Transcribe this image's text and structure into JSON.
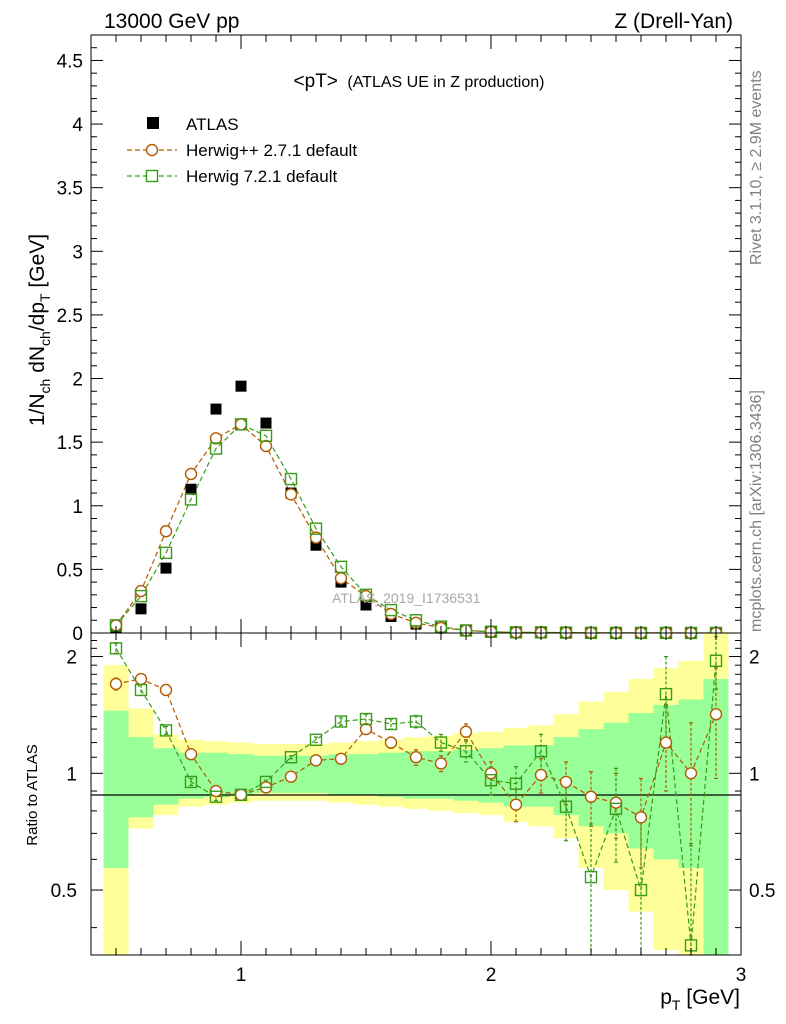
{
  "header": {
    "left_title": "13000 GeV pp",
    "right_title": "Z (Drell-Yan)"
  },
  "side_labels": {
    "rivet": "Rivet 3.1.10, ≥ 2.9M events",
    "mcplots": "mcplots.cern.ch [arXiv:1306.3436]"
  },
  "watermark": "ATLAS_2019_I1736531",
  "colors": {
    "atlas": "#000000",
    "herwigpp": "#b35900",
    "herwig7": "#3a9a1a",
    "band_inner": "#99ff99",
    "band_outer": "#ffff99"
  },
  "chart_data": [
    {
      "type": "scatter",
      "title": "<pT> (ATLAS UE in Z production)",
      "title_main": "<pT>",
      "title_sub": "(ATLAS UE in Z production)",
      "ylabel_parts": [
        "1/N",
        "ch",
        " dN",
        "ch",
        "/dp",
        "T",
        " [GeV]"
      ],
      "xlim": [
        0.4,
        3.0
      ],
      "ylim": [
        0,
        4.7
      ],
      "yticks": [
        0,
        0.5,
        1,
        1.5,
        2,
        2.5,
        3,
        3.5,
        4,
        4.5
      ],
      "ytick_labels": [
        "0",
        "0.5",
        "1",
        "1.5",
        "2",
        "2.5",
        "3",
        "3.5",
        "4",
        "4.5"
      ],
      "x": [
        0.5,
        0.6,
        0.7,
        0.8,
        0.9,
        1.0,
        1.1,
        1.2,
        1.3,
        1.4,
        1.5,
        1.6,
        1.7,
        1.8,
        1.9,
        2.0,
        2.1,
        2.2,
        2.3,
        2.4,
        2.5,
        2.6,
        2.7,
        2.8,
        2.9
      ],
      "legend": [
        {
          "name": "ATLAS",
          "marker": "filled-square"
        },
        {
          "name": "Herwig++ 2.7.1 default",
          "marker": "open-circle"
        },
        {
          "name": "Herwig 7.2.1 default",
          "marker": "open-square"
        }
      ],
      "series": [
        {
          "name": "ATLAS",
          "values": [
            0.04,
            0.19,
            0.51,
            1.13,
            1.76,
            1.94,
            1.65,
            1.1,
            0.69,
            0.4,
            0.22,
            0.13,
            0.07,
            0.04,
            0.02,
            0.01,
            0.006,
            0.004,
            0.003,
            0.002,
            0.0015,
            0.001,
            0.0008,
            0.0005,
            0.0003
          ]
        },
        {
          "name": "Herwig++ 2.7.1 default",
          "values": [
            0.06,
            0.33,
            0.8,
            1.25,
            1.53,
            1.64,
            1.47,
            1.09,
            0.75,
            0.43,
            0.29,
            0.15,
            0.08,
            0.04,
            0.02,
            0.01,
            0.005,
            0.004,
            0.003,
            0.002,
            0.001,
            0.001,
            0.001,
            0.0005,
            0.0004
          ]
        },
        {
          "name": "Herwig 7.2.1 default",
          "values": [
            0.06,
            0.29,
            0.63,
            1.05,
            1.45,
            1.64,
            1.55,
            1.21,
            0.82,
            0.52,
            0.3,
            0.18,
            0.1,
            0.05,
            0.02,
            0.01,
            0.005,
            0.005,
            0.003,
            0.001,
            0.001,
            0.0005,
            0.001,
            0.0002,
            0.0006
          ]
        }
      ]
    },
    {
      "type": "scatter",
      "ylabel": "Ratio to ATLAS",
      "xlabel_main": "p",
      "xlabel_sub": "T",
      "xlabel_unit": " [GeV]",
      "xlim": [
        0.4,
        3.0
      ],
      "ylim": [
        0.34,
        2.3
      ],
      "yticks": [
        0.5,
        1,
        2
      ],
      "ytick_labels": [
        "0.5",
        "1",
        "2"
      ],
      "xticks": [
        1,
        2,
        3
      ],
      "xtick_labels": [
        "1",
        "2",
        "3"
      ],
      "x": [
        0.5,
        0.6,
        0.7,
        0.8,
        0.9,
        1.0,
        1.1,
        1.2,
        1.3,
        1.4,
        1.5,
        1.6,
        1.7,
        1.8,
        1.9,
        2.0,
        2.1,
        2.2,
        2.3,
        2.4,
        2.5,
        2.6,
        2.7,
        2.8,
        2.9
      ],
      "band_inner_low": [
        0.57,
        0.77,
        0.83,
        0.86,
        0.87,
        0.88,
        0.89,
        0.89,
        0.89,
        0.88,
        0.88,
        0.87,
        0.86,
        0.86,
        0.85,
        0.84,
        0.82,
        0.82,
        0.78,
        0.73,
        0.7,
        0.64,
        0.6,
        0.57,
        0.34
      ],
      "band_inner_high": [
        1.45,
        1.24,
        1.16,
        1.13,
        1.13,
        1.12,
        1.11,
        1.11,
        1.11,
        1.12,
        1.12,
        1.13,
        1.14,
        1.14,
        1.15,
        1.16,
        1.18,
        1.18,
        1.24,
        1.3,
        1.35,
        1.43,
        1.5,
        1.55,
        1.75
      ],
      "band_outer_low": [
        0.34,
        0.72,
        0.78,
        0.82,
        0.83,
        0.84,
        0.85,
        0.85,
        0.85,
        0.84,
        0.83,
        0.82,
        0.81,
        0.8,
        0.79,
        0.78,
        0.75,
        0.73,
        0.68,
        0.57,
        0.5,
        0.44,
        0.35,
        0.34,
        0.34
      ],
      "band_outer_high": [
        1.9,
        1.47,
        1.26,
        1.22,
        1.21,
        1.2,
        1.19,
        1.19,
        1.19,
        1.2,
        1.21,
        1.22,
        1.24,
        1.25,
        1.27,
        1.28,
        1.31,
        1.33,
        1.42,
        1.53,
        1.62,
        1.75,
        1.87,
        1.95,
        2.3
      ],
      "series": [
        {
          "name": "Herwig++ 2.7.1 default",
          "values": [
            1.7,
            1.75,
            1.64,
            1.12,
            0.9,
            0.88,
            0.92,
            0.98,
            1.08,
            1.09,
            1.3,
            1.2,
            1.1,
            1.06,
            1.28,
            1.0,
            0.83,
            0.99,
            0.95,
            0.87,
            0.84,
            0.77,
            1.2,
            1.0,
            1.42
          ],
          "errors": [
            0.06,
            0.05,
            0.03,
            0.02,
            0.02,
            0.01,
            0.01,
            0.01,
            0.02,
            0.03,
            0.04,
            0.04,
            0.05,
            0.05,
            0.06,
            0.07,
            0.08,
            0.1,
            0.12,
            0.14,
            0.16,
            0.2,
            0.3,
            0.35,
            0.45
          ]
        },
        {
          "name": "Herwig 7.2.1 default",
          "values": [
            2.1,
            1.64,
            1.29,
            0.95,
            0.87,
            0.88,
            0.95,
            1.1,
            1.22,
            1.36,
            1.38,
            1.34,
            1.36,
            1.2,
            1.14,
            0.96,
            0.94,
            1.14,
            0.82,
            0.54,
            0.81,
            0.5,
            1.6,
            0.36,
            1.95
          ],
          "errors": [
            0.06,
            0.05,
            0.03,
            0.02,
            0.02,
            0.01,
            0.01,
            0.01,
            0.02,
            0.03,
            0.04,
            0.04,
            0.05,
            0.06,
            0.07,
            0.08,
            0.1,
            0.12,
            0.15,
            0.2,
            0.22,
            0.25,
            0.4,
            0.3,
            0.3
          ]
        }
      ]
    }
  ]
}
